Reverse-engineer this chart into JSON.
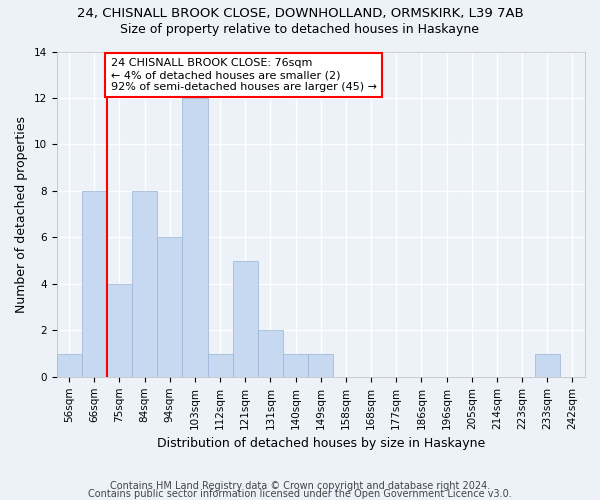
{
  "title1": "24, CHISNALL BROOK CLOSE, DOWNHOLLAND, ORMSKIRK, L39 7AB",
  "title2": "Size of property relative to detached houses in Haskayne",
  "xlabel": "Distribution of detached houses by size in Haskayne",
  "ylabel": "Number of detached properties",
  "bin_labels": [
    "56sqm",
    "66sqm",
    "75sqm",
    "84sqm",
    "94sqm",
    "103sqm",
    "112sqm",
    "121sqm",
    "131sqm",
    "140sqm",
    "149sqm",
    "158sqm",
    "168sqm",
    "177sqm",
    "186sqm",
    "196sqm",
    "205sqm",
    "214sqm",
    "223sqm",
    "233sqm",
    "242sqm"
  ],
  "bar_values": [
    1,
    8,
    4,
    8,
    6,
    12,
    1,
    5,
    2,
    1,
    1,
    0,
    0,
    0,
    0,
    0,
    0,
    0,
    0,
    1,
    0
  ],
  "bar_color": "#c6d9f0",
  "bar_edge_color": "#9ab3d5",
  "vline_x_index": 1.5,
  "annotation_text": "24 CHISNALL BROOK CLOSE: 76sqm\n← 4% of detached houses are smaller (2)\n92% of semi-detached houses are larger (45) →",
  "annotation_box_color": "white",
  "annotation_box_edge_color": "red",
  "vline_color": "red",
  "ylim": [
    0,
    14
  ],
  "yticks": [
    0,
    2,
    4,
    6,
    8,
    10,
    12,
    14
  ],
  "footnote1": "Contains HM Land Registry data © Crown copyright and database right 2024.",
  "footnote2": "Contains public sector information licensed under the Open Government Licence v3.0.",
  "bg_color": "#edf2f9",
  "grid_color": "#ffffff",
  "title1_fontsize": 9.5,
  "title2_fontsize": 9,
  "label_fontsize": 9,
  "tick_fontsize": 7.5,
  "footnote_fontsize": 7,
  "annot_fontsize": 8
}
